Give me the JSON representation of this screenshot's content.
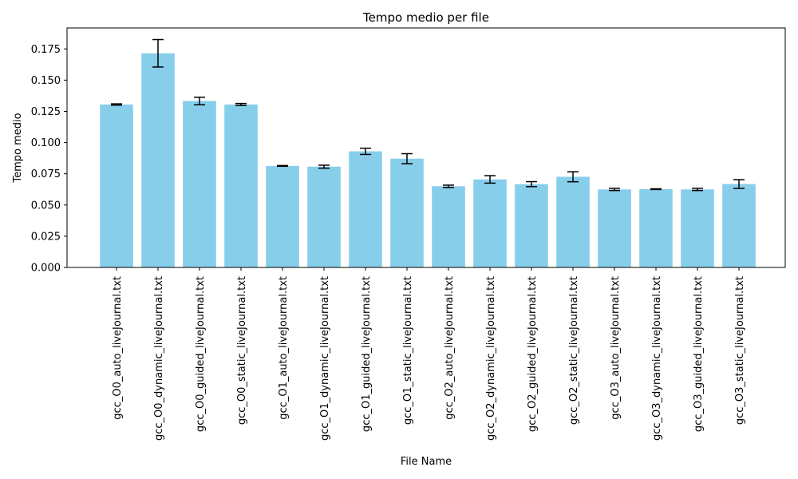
{
  "chart_data": {
    "type": "bar",
    "title": "Tempo medio per file",
    "xlabel": "File Name",
    "ylabel": "Tempo medio",
    "ylim": [
      0,
      0.1918
    ],
    "yticks": [
      "0.000",
      "0.025",
      "0.050",
      "0.075",
      "0.100",
      "0.125",
      "0.150",
      "0.175"
    ],
    "grid": false,
    "bar_color": "#87ceeb",
    "error_color": "#000000",
    "categories": [
      "gcc_O0_auto_liveJournal.txt",
      "gcc_O0_dynamic_liveJournal.txt",
      "gcc_O0_guided_liveJournal.txt",
      "gcc_O0_static_liveJournal.txt",
      "gcc_O1_auto_liveJournal.txt",
      "gcc_O1_dynamic_liveJournal.txt",
      "gcc_O1_guided_liveJournal.txt",
      "gcc_O1_static_liveJournal.txt",
      "gcc_O2_auto_liveJournal.txt",
      "gcc_O2_dynamic_liveJournal.txt",
      "gcc_O2_guided_liveJournal.txt",
      "gcc_O2_static_liveJournal.txt",
      "gcc_O3_auto_liveJournal.txt",
      "gcc_O3_dynamic_liveJournal.txt",
      "gcc_O3_guided_liveJournal.txt",
      "gcc_O3_static_liveJournal.txt"
    ],
    "values": [
      0.1305,
      0.1715,
      0.1333,
      0.1305,
      0.0813,
      0.0807,
      0.093,
      0.0871,
      0.065,
      0.0705,
      0.0667,
      0.0726,
      0.0625,
      0.0627,
      0.0625,
      0.0668
    ],
    "errors": [
      0.0005,
      0.011,
      0.003,
      0.0008,
      0.0003,
      0.0012,
      0.0025,
      0.004,
      0.0009,
      0.003,
      0.002,
      0.004,
      0.0009,
      0.0003,
      0.0009,
      0.0035
    ]
  }
}
